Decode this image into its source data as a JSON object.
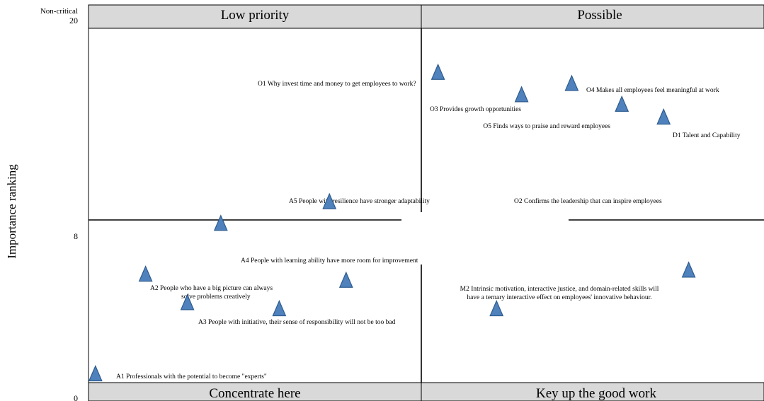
{
  "chart_data": {
    "type": "scatter",
    "title": "",
    "xlabel": "",
    "ylabel": "Importance ranking",
    "ylim": [
      0,
      20
    ],
    "y_ticks": [
      "0",
      "8",
      "20"
    ],
    "y_top_note": "Non-critical",
    "quadrants": {
      "top_left": "Low priority",
      "top_right": "Possible",
      "bottom_left": "Concentrate here",
      "bottom_right": "Key up the good work"
    },
    "points": [
      {
        "label": "O1 Why invest time and money to get employees to work?",
        "x": 0.2,
        "y": 17.2
      },
      {
        "label": "O3 Provides growth opportunities",
        "x": 1.2,
        "y": 15.8
      },
      {
        "label": "O4 Makes all employees feel meaningful at work",
        "x": 1.8,
        "y": 16.5
      },
      {
        "label": "O5 Finds ways to praise and reward employees",
        "x": 2.4,
        "y": 15.2
      },
      {
        "label": "D1 Talent and Capability",
        "x": 2.9,
        "y": 14.4
      },
      {
        "label": "A5 People with resilience have stronger adaptability",
        "x": -1.1,
        "y": 9.1
      },
      {
        "label": "O2 Confirms the leadership that can inspire employees",
        "x": null,
        "y": null
      },
      {
        "label": "A4 People with learning ability have more room for improvement",
        "x": -2.4,
        "y": 7.8
      },
      {
        "label": "A2 People who have a big picture can always solve problems creatively",
        "x": -3.3,
        "y": 5.3
      },
      {
        "label": "",
        "x": -0.9,
        "y": 5.0
      },
      {
        "label": "M2 Intrinsic motivation, interactive justice, and domain-related skills will have a ternary interactive effect on employees' innovative behaviour.",
        "x": 3.2,
        "y": 5.5
      },
      {
        "label": "A3 People with initiative, their sense of responsibility will not be too bad",
        "x": -2.8,
        "y": 3.9
      },
      {
        "label": "",
        "x": -1.7,
        "y": 3.6
      },
      {
        "label": "",
        "x": 0.9,
        "y": 3.6
      },
      {
        "label": "A1 Professionals with the potential to become \"experts\"",
        "x": -3.9,
        "y": 0.4
      }
    ]
  }
}
